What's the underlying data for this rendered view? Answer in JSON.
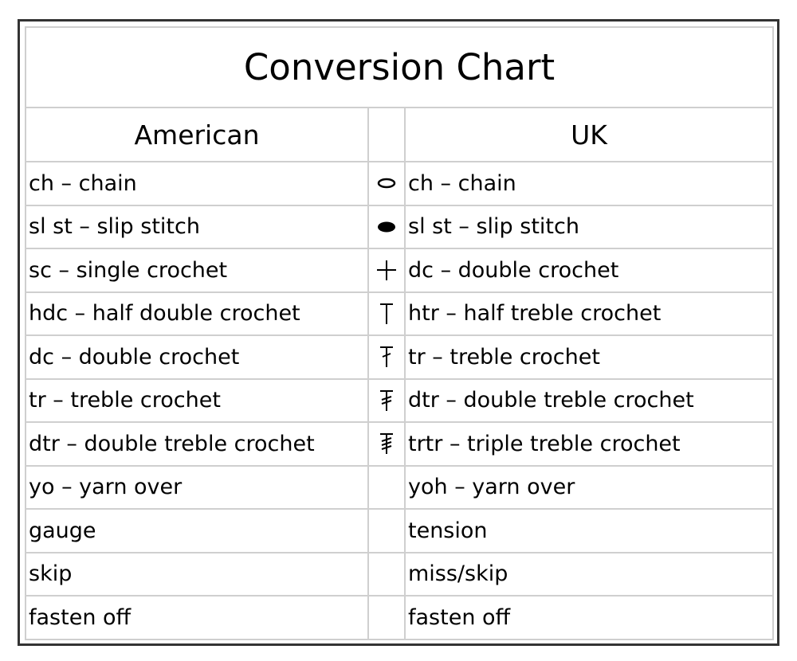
{
  "title": "Conversion Chart",
  "headers": {
    "american": "American",
    "uk": "UK"
  },
  "rows": [
    {
      "american": "ch – chain",
      "symbol": "chain-oval-icon",
      "uk": "ch – chain"
    },
    {
      "american": "sl st – slip stitch",
      "symbol": "filled-oval-icon",
      "uk": "sl st – slip stitch"
    },
    {
      "american": "sc – single crochet",
      "symbol": "plus-icon",
      "uk": "dc – double crochet"
    },
    {
      "american": "hdc – half double crochet",
      "symbol": "t-bar-icon",
      "uk": "htr – half treble crochet"
    },
    {
      "american": "dc – double crochet",
      "symbol": "t-one-slash-icon",
      "uk": "tr – treble crochet"
    },
    {
      "american": "tr – treble crochet",
      "symbol": "t-two-slash-icon",
      "uk": "dtr – double treble crochet"
    },
    {
      "american": "dtr – double treble crochet",
      "symbol": "t-three-slash-icon",
      "uk": "trtr – triple treble crochet"
    },
    {
      "american": "yo – yarn over",
      "symbol": "",
      "uk": "yoh – yarn over"
    },
    {
      "american": "gauge",
      "symbol": "",
      "uk": "tension"
    },
    {
      "american": "skip",
      "symbol": "",
      "uk": "miss/skip"
    },
    {
      "american": "fasten off",
      "symbol": "",
      "uk": "fasten off"
    }
  ]
}
